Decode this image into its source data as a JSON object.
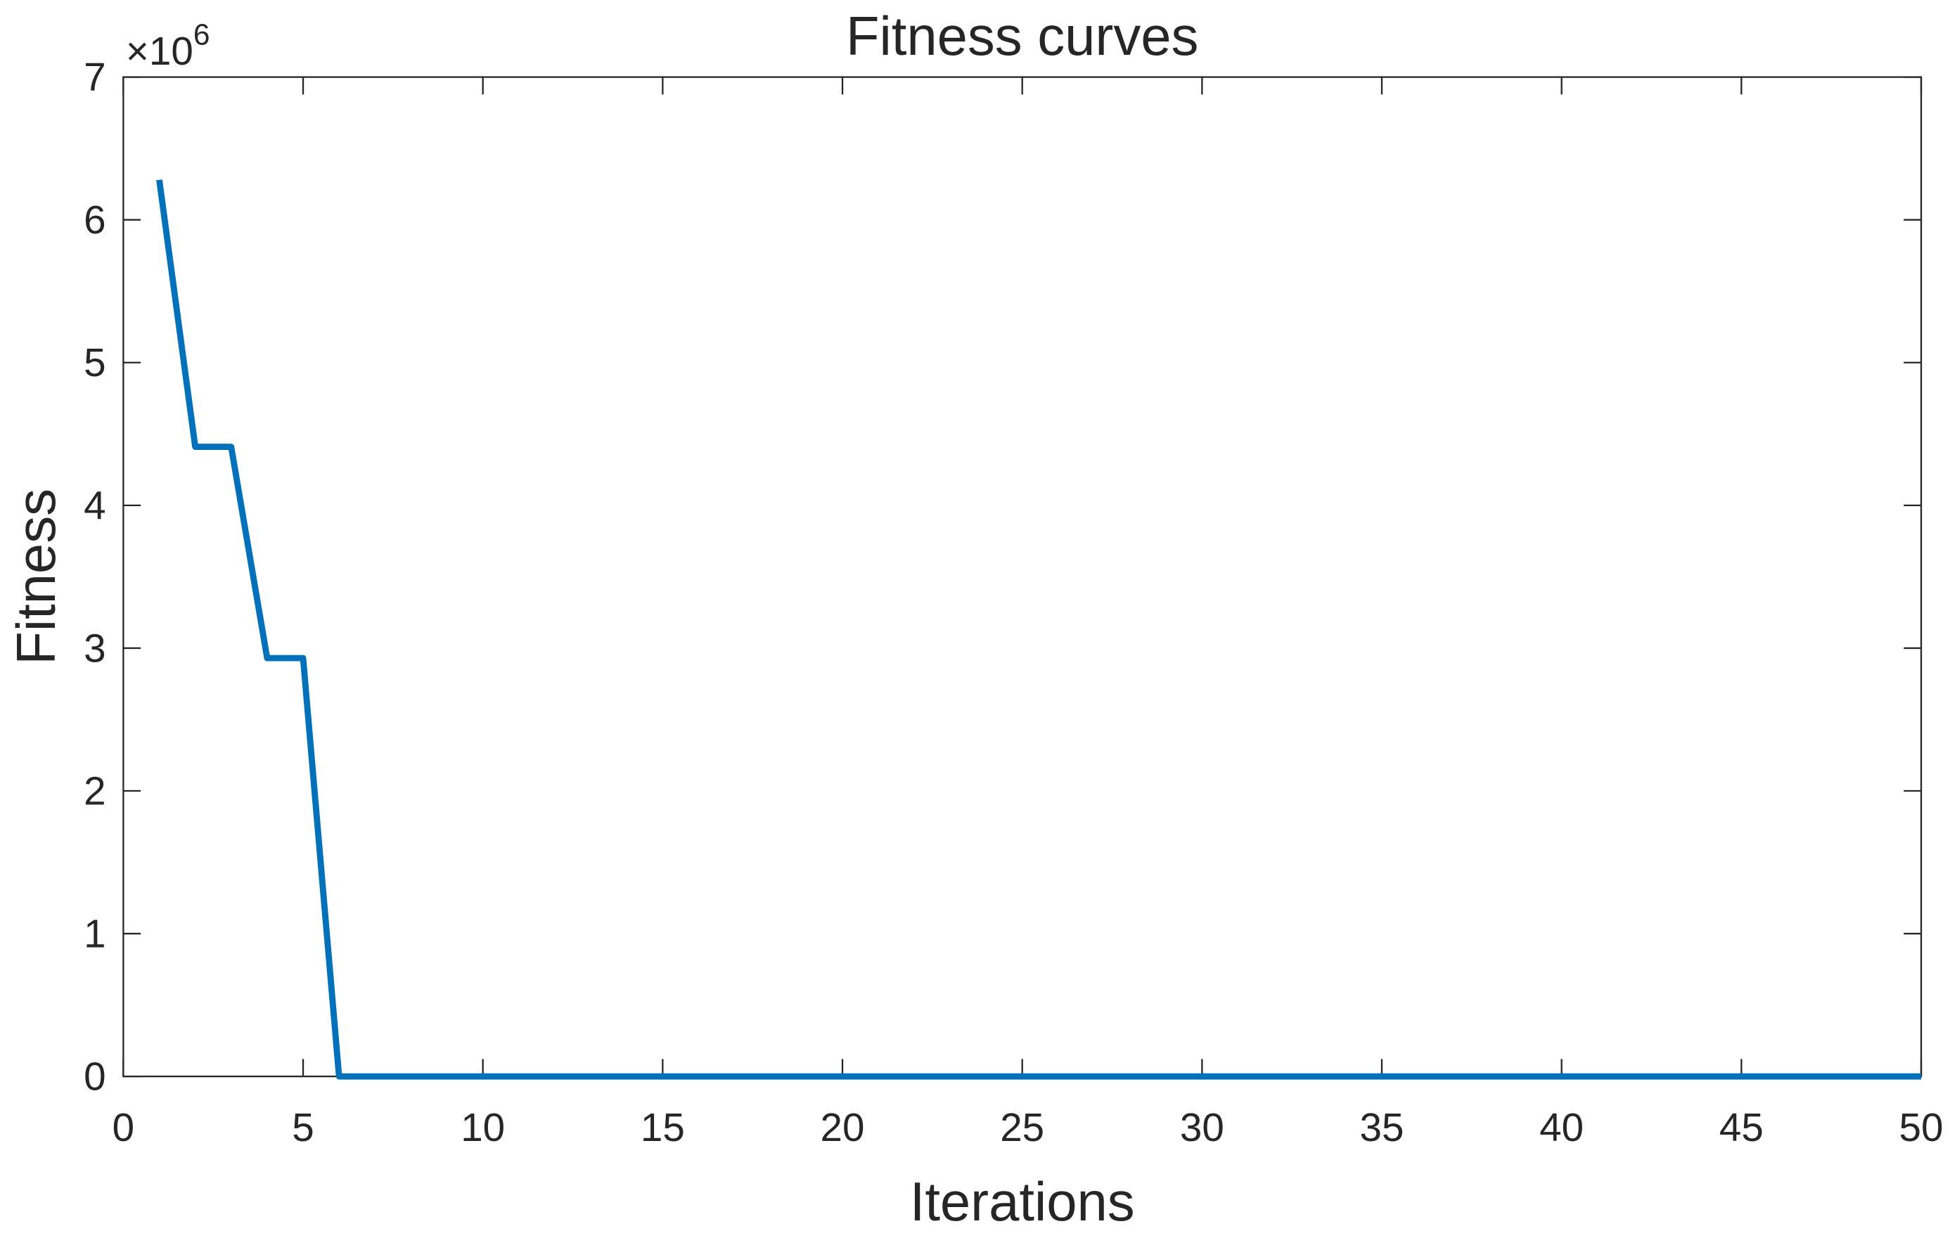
{
  "chart_data": {
    "type": "line",
    "title": "Fitness curves",
    "x_label": "Iterations",
    "y_label": "Fitness",
    "y_multiplier": {
      "base": "×10",
      "power": "6"
    },
    "x": [
      1,
      2,
      3,
      4,
      5,
      6,
      7,
      8,
      9,
      10,
      11,
      12,
      13,
      14,
      15,
      16,
      17,
      18,
      19,
      20,
      21,
      22,
      23,
      24,
      25,
      26,
      27,
      28,
      29,
      30,
      31,
      32,
      33,
      34,
      35,
      36,
      37,
      38,
      39,
      40,
      41,
      42,
      43,
      44,
      45,
      46,
      47,
      48,
      49,
      50
    ],
    "values": [
      6.28,
      4.41,
      4.41,
      2.93,
      2.93,
      0,
      0,
      0,
      0,
      0,
      0,
      0,
      0,
      0,
      0,
      0,
      0,
      0,
      0,
      0,
      0,
      0,
      0,
      0,
      0,
      0,
      0,
      0,
      0,
      0,
      0,
      0,
      0,
      0,
      0,
      0,
      0,
      0,
      0,
      0,
      0,
      0,
      0,
      0,
      0,
      0,
      0,
      0,
      0,
      0
    ],
    "color": "#0072bd",
    "xlim": [
      0,
      50
    ],
    "xticks": [
      0,
      5,
      10,
      15,
      20,
      25,
      30,
      35,
      40,
      45,
      50
    ],
    "ylim": [
      0,
      7
    ],
    "yticks": [
      0,
      1,
      2,
      3,
      4,
      5,
      6,
      7
    ],
    "grid": false
  }
}
